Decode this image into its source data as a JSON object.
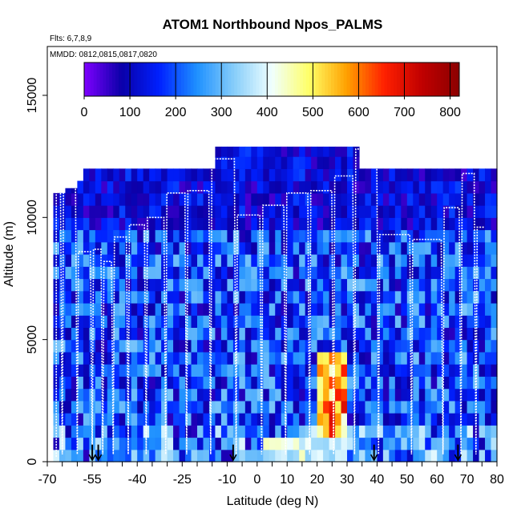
{
  "chart_data": {
    "type": "heatmap",
    "title": "ATOM1 Northbound Npos_PALMS",
    "flights_label": "Flts: 6,7,8,9",
    "dates_label": "MMDD: 0812,0815,0817,0820",
    "xlabel": "Latitude (deg N)",
    "ylabel": "Altitude (m)",
    "xlim": [
      -70,
      80
    ],
    "ylim": [
      0,
      17000
    ],
    "x_ticks": [
      -70,
      -55,
      -40,
      -25,
      -10,
      0,
      10,
      20,
      30,
      40,
      50,
      60,
      70,
      80
    ],
    "y_ticks": [
      0,
      5000,
      10000,
      15000
    ],
    "grid": false,
    "colorbar": {
      "range": [
        0,
        820
      ],
      "ticks": [
        0,
        100,
        200,
        300,
        400,
        500,
        600,
        700,
        800
      ],
      "colors": [
        "#7f00ff",
        "#0a00a8",
        "#0020ff",
        "#1e90ff",
        "#87cefa",
        "#f0ffff",
        "#ffff66",
        "#ffa000",
        "#ff2000",
        "#c00000",
        "#8b0000"
      ]
    },
    "curtain": {
      "lat_start": -68,
      "lat_end": 80,
      "lat_step": 2,
      "alt_bins": [
        0,
        500,
        1000,
        1500,
        2000,
        2500,
        3000,
        3500,
        4000,
        4500,
        5000,
        5500,
        6000,
        6500,
        7000,
        7500,
        8000,
        8500,
        9000,
        9500,
        10000,
        10500,
        11000,
        11500,
        12000,
        12500,
        13000
      ],
      "top_altitude": [
        11000,
        11000,
        11200,
        11200,
        11500,
        12000,
        12000,
        12000,
        12000,
        12000,
        12000,
        12000,
        12000,
        12000,
        12000,
        12000,
        12000,
        12000,
        12000,
        12000,
        12000,
        12000,
        12000,
        12000,
        12000,
        12000,
        12000,
        12000,
        12000,
        12000,
        12000,
        12000,
        12000,
        12000,
        12000,
        12000,
        12000,
        12000,
        12000,
        12000,
        12000,
        12000,
        12000,
        12000,
        12000,
        12000,
        12000,
        12000,
        12000,
        12000,
        12000,
        12000,
        12000,
        12000,
        12000,
        12000,
        12000,
        12000,
        12000,
        12000,
        12000,
        12000,
        12000,
        12000,
        12000,
        12000,
        12000,
        12000,
        12000,
        12000,
        12000,
        12000,
        12000,
        12000
      ],
      "high_plateau": {
        "from": -14,
        "to": 34,
        "altitude": 12900
      },
      "hotspot": {
        "lat_from": 20,
        "lat_to": 30,
        "alt_from": 1000,
        "alt_to": 4500,
        "peak": 700
      }
    },
    "flight_track_apex": [
      {
        "lat": -67,
        "alt": 11200
      },
      {
        "lat": -63,
        "alt": 11400
      },
      {
        "lat": -57,
        "alt": 8600
      },
      {
        "lat": -53,
        "alt": 8700
      },
      {
        "lat": -50,
        "alt": 8200
      },
      {
        "lat": -46,
        "alt": 9200
      },
      {
        "lat": -40,
        "alt": 9700
      },
      {
        "lat": -34,
        "alt": 10000
      },
      {
        "lat": -27,
        "alt": 11000
      },
      {
        "lat": -20,
        "alt": 11100
      },
      {
        "lat": -11,
        "alt": 12400
      },
      {
        "lat": -3,
        "alt": 10100
      },
      {
        "lat": 6,
        "alt": 10500
      },
      {
        "lat": 13,
        "alt": 11000
      },
      {
        "lat": 22,
        "alt": 11100
      },
      {
        "lat": 29,
        "alt": 11700
      },
      {
        "lat": 36,
        "alt": 12800
      },
      {
        "lat": 45,
        "alt": 9300
      },
      {
        "lat": 58,
        "alt": 9100
      },
      {
        "lat": 66,
        "alt": 10400
      },
      {
        "lat": 70,
        "alt": 11800
      },
      {
        "lat": 76,
        "alt": 9600
      }
    ],
    "profile_markers": [
      -55,
      -53,
      -8,
      39,
      67
    ]
  }
}
